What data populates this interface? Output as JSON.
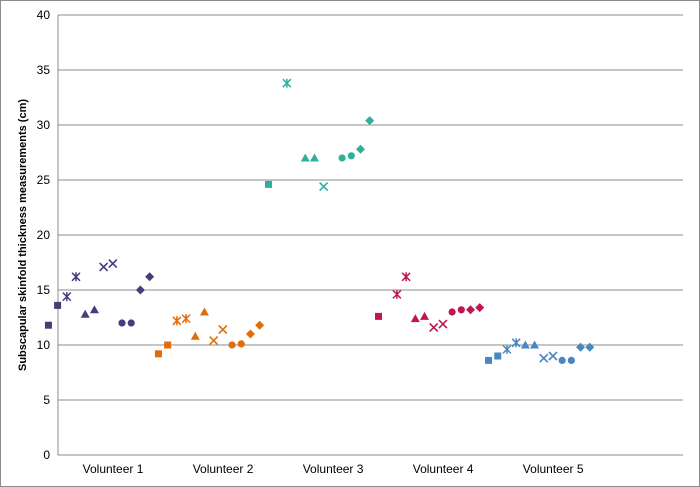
{
  "chart_data": {
    "type": "scatter",
    "title": "",
    "xlabel": "",
    "ylabel": "Subscapular skinfold thickness measurements (cm)",
    "ylim": [
      0,
      40
    ],
    "yticks": [
      0,
      5,
      10,
      15,
      20,
      25,
      30,
      35,
      40
    ],
    "grid": "horizontal",
    "legend": "none",
    "categories": [
      "Volunteer  1",
      "Volunteer 2",
      "Volunteer 3",
      "Volunteer 4",
      "Volunteer 5"
    ],
    "marker_order": [
      "square",
      "square",
      "star",
      "star",
      "triangle",
      "triangle",
      "x",
      "x",
      "circle",
      "circle",
      "diamond",
      "diamond"
    ],
    "colors": [
      "#4b3a7c",
      "#e36c0a",
      "#2fb09c",
      "#c0184b",
      "#4a86c0"
    ],
    "series": [
      {
        "values": [
          11.8,
          13.6,
          14.4,
          16.2,
          12.8,
          13.2,
          17.1,
          17.4,
          12.0,
          12.0,
          15.0,
          16.2
        ]
      },
      {
        "values": [
          9.2,
          10.0,
          12.2,
          12.4,
          10.8,
          13.0,
          10.4,
          11.4,
          10.0,
          10.1,
          11.0,
          11.8
        ]
      },
      {
        "values": [
          24.6,
          null,
          33.8,
          null,
          27.0,
          27.0,
          24.4,
          null,
          27.0,
          27.2,
          27.8,
          30.4
        ]
      },
      {
        "values": [
          12.6,
          null,
          14.6,
          16.2,
          12.4,
          12.6,
          11.6,
          11.9,
          13.0,
          13.2,
          13.2,
          13.4
        ]
      },
      {
        "values": [
          8.6,
          9.0,
          9.6,
          10.2,
          10.0,
          10.0,
          8.8,
          9.0,
          8.6,
          8.6,
          9.8,
          9.8
        ]
      }
    ]
  }
}
